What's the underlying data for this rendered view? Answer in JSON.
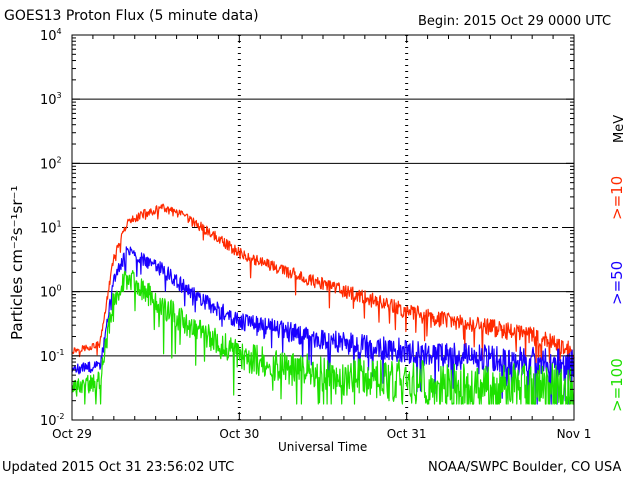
{
  "header": {
    "title": "GOES13 Proton Flux (5 minute data)",
    "begin": "Begin: 2015 Oct 29 0000 UTC"
  },
  "footer": {
    "updated": "Updated 2015 Oct 31 23:56:02 UTC",
    "credit": "NOAA/SWPC Boulder, CO USA"
  },
  "colors": {
    "ge10": "#ff2a00",
    "ge50": "#1a00ff",
    "ge100": "#1ee000",
    "axis": "#000000"
  },
  "chart_data": {
    "type": "line",
    "title": "GOES13 Proton Flux (5 minute data)",
    "xlabel": "Universal Time",
    "ylabel": "Particles cm⁻²s⁻¹sr⁻¹",
    "units_label": "MeV",
    "y_scale": "log",
    "ylim": [
      0.01,
      10000
    ],
    "xlim_days": [
      0,
      3
    ],
    "x_ticks": [
      "Oct 29",
      "Oct 30",
      "Oct 31",
      "Nov 1"
    ],
    "y_ticks": [
      {
        "base": "10",
        "exp": "-2"
      },
      {
        "base": "10",
        "exp": "-1"
      },
      {
        "base": "10",
        "exp": "0"
      },
      {
        "base": "10",
        "exp": "1"
      },
      {
        "base": "10",
        "exp": "2"
      },
      {
        "base": "10",
        "exp": "3"
      },
      {
        "base": "10",
        "exp": "4"
      }
    ],
    "grid": "horizontal lines at decades, dashed at 10",
    "series": [
      {
        "name": ">=10",
        "color": "#ff2a00",
        "points": [
          {
            "x": "2015-10-29 00:00",
            "y": 0.12
          },
          {
            "x": "2015-10-29 04:00",
            "y": 0.15
          },
          {
            "x": "2015-10-29 06:00",
            "y": 3.5
          },
          {
            "x": "2015-10-29 08:00",
            "y": 12
          },
          {
            "x": "2015-10-29 10:00",
            "y": 16
          },
          {
            "x": "2015-10-29 13:00",
            "y": 20
          },
          {
            "x": "2015-10-29 16:00",
            "y": 15
          },
          {
            "x": "2015-10-29 20:00",
            "y": 8
          },
          {
            "x": "2015-10-30 00:00",
            "y": 4
          },
          {
            "x": "2015-10-30 06:00",
            "y": 2.2
          },
          {
            "x": "2015-10-30 12:00",
            "y": 1.3
          },
          {
            "x": "2015-10-30 18:00",
            "y": 0.8
          },
          {
            "x": "2015-10-31 00:00",
            "y": 0.5
          },
          {
            "x": "2015-10-31 06:00",
            "y": 0.35
          },
          {
            "x": "2015-10-31 12:00",
            "y": 0.28
          },
          {
            "x": "2015-10-31 18:00",
            "y": 0.2
          },
          {
            "x": "2015-11-01 00:00",
            "y": 0.12
          }
        ]
      },
      {
        "name": ">=50",
        "color": "#1a00ff",
        "points": [
          {
            "x": "2015-10-29 00:00",
            "y": 0.06
          },
          {
            "x": "2015-10-29 04:00",
            "y": 0.07
          },
          {
            "x": "2015-10-29 06:00",
            "y": 1.5
          },
          {
            "x": "2015-10-29 08:00",
            "y": 4.5
          },
          {
            "x": "2015-10-29 10:00",
            "y": 3.3
          },
          {
            "x": "2015-10-29 13:00",
            "y": 2.2
          },
          {
            "x": "2015-10-29 16:00",
            "y": 1.2
          },
          {
            "x": "2015-10-29 20:00",
            "y": 0.6
          },
          {
            "x": "2015-10-30 00:00",
            "y": 0.35
          },
          {
            "x": "2015-10-30 06:00",
            "y": 0.25
          },
          {
            "x": "2015-10-30 12:00",
            "y": 0.18
          },
          {
            "x": "2015-10-30 18:00",
            "y": 0.14
          },
          {
            "x": "2015-10-31 00:00",
            "y": 0.12
          },
          {
            "x": "2015-10-31 06:00",
            "y": 0.1
          },
          {
            "x": "2015-10-31 12:00",
            "y": 0.09
          },
          {
            "x": "2015-10-31 18:00",
            "y": 0.08
          },
          {
            "x": "2015-11-01 00:00",
            "y": 0.07
          }
        ]
      },
      {
        "name": ">=100",
        "color": "#1ee000",
        "points": [
          {
            "x": "2015-10-29 00:00",
            "y": 0.03
          },
          {
            "x": "2015-10-29 04:00",
            "y": 0.04
          },
          {
            "x": "2015-10-29 06:00",
            "y": 0.8
          },
          {
            "x": "2015-10-29 08:00",
            "y": 1.7
          },
          {
            "x": "2015-10-29 10:00",
            "y": 1.1
          },
          {
            "x": "2015-10-29 13:00",
            "y": 0.6
          },
          {
            "x": "2015-10-29 16:00",
            "y": 0.35
          },
          {
            "x": "2015-10-29 20:00",
            "y": 0.18
          },
          {
            "x": "2015-10-30 00:00",
            "y": 0.1
          },
          {
            "x": "2015-10-30 06:00",
            "y": 0.07
          },
          {
            "x": "2015-10-30 12:00",
            "y": 0.05
          },
          {
            "x": "2015-10-30 18:00",
            "y": 0.045
          },
          {
            "x": "2015-10-31 00:00",
            "y": 0.04
          },
          {
            "x": "2015-10-31 06:00",
            "y": 0.035
          },
          {
            "x": "2015-10-31 12:00",
            "y": 0.032
          },
          {
            "x": "2015-10-31 18:00",
            "y": 0.03
          },
          {
            "x": "2015-11-01 00:00",
            "y": 0.028
          }
        ]
      }
    ]
  }
}
